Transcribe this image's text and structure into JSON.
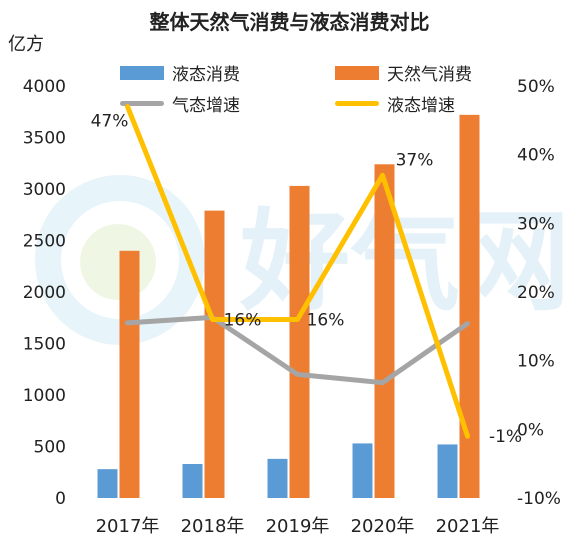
{
  "chart_data": {
    "type": "bar",
    "title": "整体天然气消费与液态消费对比",
    "ylabel": "亿方",
    "categories": [
      "2017年",
      "2018年",
      "2019年",
      "2020年",
      "2021年"
    ],
    "ylim": [
      0,
      4000
    ],
    "yticks": [
      "0",
      "500",
      "1000",
      "1500",
      "2000",
      "2500",
      "3000",
      "3500",
      "4000"
    ],
    "y2lim": [
      -10,
      50
    ],
    "y2ticks": [
      "-10%",
      "0%",
      "10%",
      "20%",
      "30%",
      "40%",
      "50%"
    ],
    "series": [
      {
        "name": "液态消费",
        "type": "bar",
        "axis": "left",
        "color": "#5b9bd5",
        "values": [
          280,
          330,
          380,
          530,
          520
        ]
      },
      {
        "name": "天然气消费",
        "type": "bar",
        "axis": "left",
        "color": "#ed7d31",
        "values": [
          2400,
          2790,
          3030,
          3240,
          3720
        ]
      },
      {
        "name": "气态增速",
        "type": "line",
        "axis": "right",
        "color": "#a5a5a5",
        "values": [
          15.5,
          16.3,
          8,
          6.8,
          15.4
        ]
      },
      {
        "name": "液态增速",
        "type": "line",
        "axis": "right",
        "color": "#ffc000",
        "values": [
          47,
          16,
          16,
          37,
          -1
        ],
        "labels": [
          "47%",
          "16%",
          "16%",
          "37%",
          "-1%"
        ]
      }
    ],
    "legend_position": "top",
    "grid": false
  },
  "watermark": "好气网"
}
